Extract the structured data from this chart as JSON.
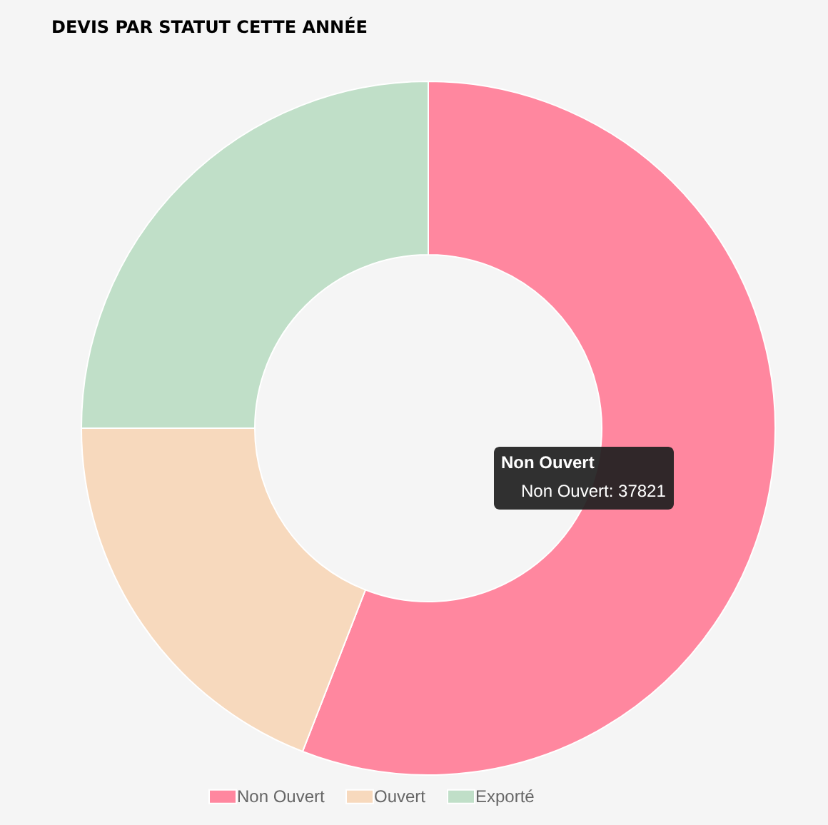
{
  "chart_data": {
    "type": "donut",
    "title": "DEVIS PAR STATUT CETTE ANNÉE",
    "categories": [
      "Non Ouvert",
      "Ouvert",
      "Exporté"
    ],
    "values": [
      55.9,
      19.1,
      25.0
    ],
    "colors": [
      "#ff879f",
      "#f7d9bd",
      "#c0dfc8"
    ],
    "legend": "bottom",
    "annotations": [
      "Non Ouvert",
      "Non Ouvert: 37821"
    ]
  }
}
